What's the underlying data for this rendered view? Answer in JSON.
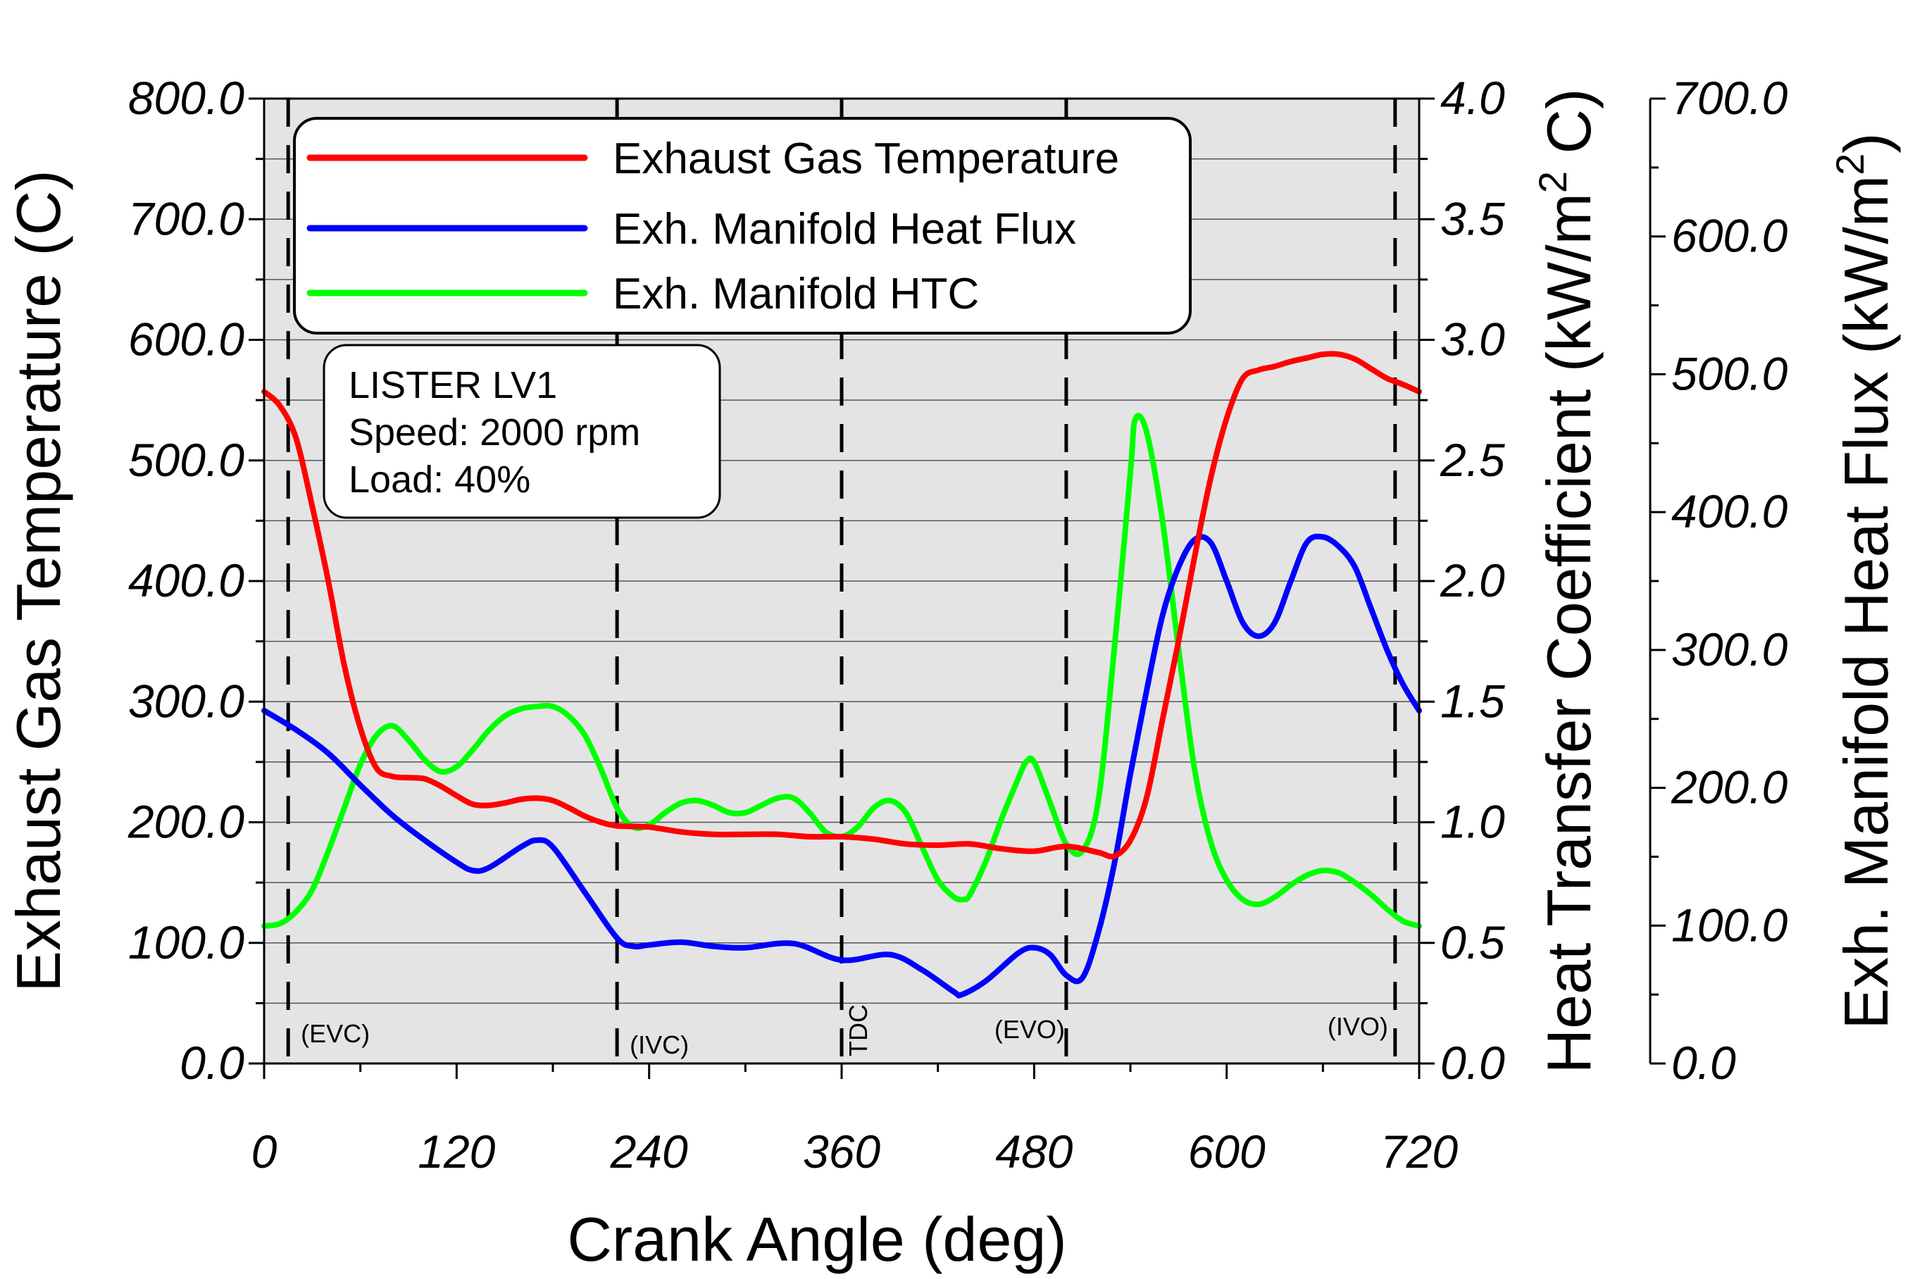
{
  "chart_data": {
    "type": "line",
    "title": "",
    "xlabel": "Crank Angle (deg)",
    "xlim": [
      0,
      720
    ],
    "xticks": [
      0,
      120,
      240,
      360,
      480,
      600,
      720
    ],
    "xtick_labels": [
      "0",
      "120",
      "240",
      "360",
      "480",
      "600",
      "720"
    ],
    "axes": {
      "left": {
        "label": "Exhaust Gas Temperature (C)",
        "range": [
          0,
          800
        ],
        "ticks": [
          0,
          100,
          200,
          300,
          400,
          500,
          600,
          700,
          800
        ],
        "tick_labels": [
          "0.0",
          "100.0",
          "200.0",
          "300.0",
          "400.0",
          "500.0",
          "600.0",
          "700.0",
          "800.0"
        ]
      },
      "right1": {
        "label_prefix": "Heat Transfer Coefficient (kW/m",
        "label_sup": "2",
        "label_suffix": " C)",
        "range": [
          0,
          4
        ],
        "ticks": [
          0,
          0.5,
          1,
          1.5,
          2,
          2.5,
          3,
          3.5,
          4
        ],
        "tick_labels": [
          "0.0",
          "0.5",
          "1.0",
          "1.5",
          "2.0",
          "2.5",
          "3.0",
          "3.5",
          "4.0"
        ]
      },
      "right2": {
        "label_prefix": "Exh. Manifold Heat Flux (kW/m",
        "label_sup": "2",
        "label_suffix": ")",
        "range": [
          0,
          700
        ],
        "ticks": [
          0,
          100,
          200,
          300,
          400,
          500,
          600,
          700
        ],
        "tick_labels": [
          "0.0",
          "100.0",
          "200.0",
          "300.0",
          "400.0",
          "500.0",
          "600.0",
          "700.0"
        ]
      }
    },
    "series": [
      {
        "name": "Exhaust Gas Temperature",
        "color": "#ff0000",
        "axis": "left",
        "x": [
          0,
          10,
          20,
          30,
          40,
          50,
          60,
          70,
          80,
          90,
          100,
          110,
          120,
          130,
          140,
          150,
          160,
          170,
          180,
          190,
          200,
          210,
          220,
          240,
          260,
          280,
          300,
          320,
          340,
          360,
          380,
          400,
          420,
          440,
          460,
          480,
          500,
          520,
          530,
          540,
          550,
          560,
          570,
          580,
          590,
          600,
          610,
          620,
          630,
          640,
          650,
          660,
          670,
          680,
          690,
          700,
          710,
          720
        ],
        "y": [
          557,
          545,
          518,
          462,
          400,
          330,
          278,
          245,
          238,
          237,
          236,
          230,
          222,
          215,
          214,
          216,
          219,
          220,
          218,
          212,
          205,
          200,
          197,
          196,
          192,
          190,
          190,
          190,
          188,
          188,
          186,
          182,
          181,
          182,
          178,
          176,
          180,
          175,
          172,
          185,
          220,
          285,
          350,
          420,
          485,
          535,
          568,
          575,
          578,
          582,
          585,
          588,
          588,
          584,
          576,
          568,
          563,
          557
        ]
      },
      {
        "name": "Exh. Manifold Heat Flux",
        "color": "#0000ff",
        "axis": "right2",
        "x": [
          0,
          20,
          40,
          60,
          80,
          100,
          120,
          130,
          140,
          160,
          170,
          180,
          200,
          220,
          230,
          240,
          260,
          280,
          300,
          330,
          360,
          390,
          410,
          430,
          435,
          450,
          470,
          480,
          490,
          500,
          510,
          520,
          530,
          540,
          550,
          560,
          570,
          580,
          590,
          600,
          610,
          620,
          630,
          640,
          650,
          660,
          670,
          680,
          690,
          700,
          710,
          720
        ],
        "y": [
          256,
          242,
          225,
          202,
          180,
          162,
          146,
          140,
          142,
          157,
          162,
          157,
          124,
          91,
          85,
          86,
          88,
          85,
          84,
          87,
          75,
          79,
          68,
          52,
          50,
          60,
          80,
          84,
          79,
          64,
          62,
          95,
          145,
          210,
          270,
          325,
          360,
          380,
          378,
          350,
          320,
          310,
          320,
          350,
          378,
          382,
          375,
          360,
          330,
          300,
          275,
          256
        ]
      },
      {
        "name": "Exh. Manifold HTC",
        "color": "#00ff00",
        "axis": "right1",
        "x": [
          0,
          10,
          20,
          30,
          40,
          50,
          60,
          70,
          80,
          90,
          100,
          110,
          120,
          130,
          140,
          150,
          160,
          170,
          180,
          190,
          200,
          210,
          220,
          230,
          240,
          250,
          260,
          270,
          280,
          290,
          300,
          310,
          320,
          330,
          340,
          350,
          360,
          370,
          380,
          390,
          400,
          410,
          420,
          430,
          436,
          440,
          450,
          460,
          470,
          475,
          480,
          490,
          500,
          510,
          520,
          530,
          540,
          543,
          550,
          560,
          570,
          580,
          590,
          600,
          610,
          620,
          630,
          640,
          650,
          660,
          670,
          680,
          690,
          700,
          710,
          720
        ],
        "y": [
          0.57,
          0.58,
          0.63,
          0.72,
          0.88,
          1.06,
          1.24,
          1.36,
          1.4,
          1.34,
          1.26,
          1.21,
          1.23,
          1.3,
          1.38,
          1.44,
          1.47,
          1.48,
          1.48,
          1.44,
          1.36,
          1.22,
          1.06,
          0.98,
          0.99,
          1.04,
          1.08,
          1.09,
          1.07,
          1.04,
          1.04,
          1.07,
          1.1,
          1.1,
          1.04,
          0.96,
          0.94,
          0.98,
          1.06,
          1.09,
          1.04,
          0.9,
          0.76,
          0.69,
          0.68,
          0.7,
          0.84,
          1.02,
          1.18,
          1.25,
          1.25,
          1.08,
          0.91,
          0.88,
          1.09,
          1.72,
          2.45,
          2.67,
          2.62,
          2.25,
          1.72,
          1.22,
          0.92,
          0.76,
          0.68,
          0.66,
          0.69,
          0.74,
          0.78,
          0.8,
          0.79,
          0.75,
          0.7,
          0.64,
          0.59,
          0.57
        ]
      }
    ],
    "vlines": [
      {
        "x": 15,
        "label": "(EVC)"
      },
      {
        "x": 220,
        "label": "(IVC)"
      },
      {
        "x": 360,
        "label": "TDC"
      },
      {
        "x": 500,
        "label": "(EVO)"
      },
      {
        "x": 705,
        "label": "(IVO)"
      }
    ],
    "legend": {
      "position": "top-left",
      "entries": [
        "Exhaust Gas Temperature",
        "Exh. Manifold Heat Flux",
        "Exh. Manifold HTC"
      ]
    },
    "annotation": {
      "lines": [
        "LISTER LV1",
        "Speed: 2000 rpm",
        "Load: 40%"
      ]
    },
    "grid": true
  }
}
